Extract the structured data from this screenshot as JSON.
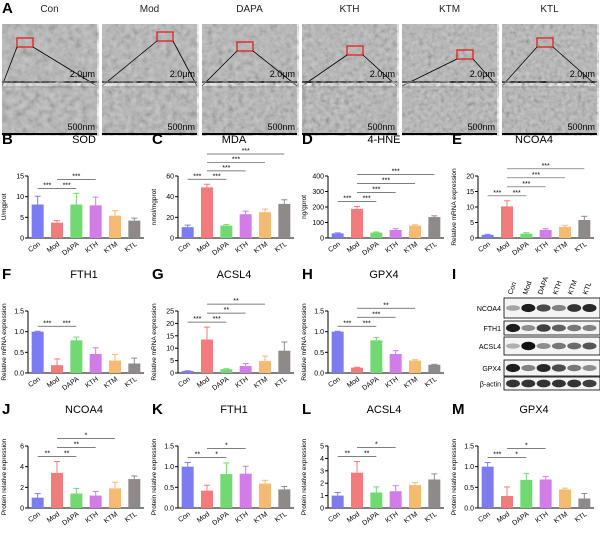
{
  "panel_a": {
    "letter": "A",
    "groups": [
      "Con",
      "Mod",
      "DAPA",
      "KTH",
      "KTM",
      "KTL"
    ],
    "scale_top": "2.0μm",
    "scale_bottom": "500nm"
  },
  "colors": {
    "Con": "#7c7cf0",
    "Mod": "#f07c7c",
    "DAPA": "#72d872",
    "KTH": "#d27ce8",
    "KTM": "#f5bb72",
    "KTL": "#8e8a8a"
  },
  "chart_data": [
    {
      "letter": "B",
      "type": "bar",
      "title": "SOD",
      "ylabel": "U/mgprot",
      "ylim": [
        0,
        15
      ],
      "ticks": [
        "0",
        "5",
        "10",
        "15"
      ],
      "categories": [
        "Con",
        "Mod",
        "DAPA",
        "KTH",
        "KTM",
        "KTL"
      ],
      "values": [
        8.1,
        3.7,
        8.1,
        7.9,
        5.4,
        4.2
      ],
      "errors": [
        2.0,
        0.5,
        2.7,
        2.0,
        1.2,
        0.6
      ],
      "significance": [
        {
          "from": 0,
          "to": 1,
          "label": "***"
        },
        {
          "from": 1,
          "to": 2,
          "label": "***"
        },
        {
          "from": 1,
          "to": 3,
          "label": "***"
        }
      ]
    },
    {
      "letter": "C",
      "type": "bar",
      "title": "MDA",
      "ylabel": "nmol/mgprot",
      "ylim": [
        0,
        60
      ],
      "ticks": [
        "0",
        "20",
        "40",
        "60"
      ],
      "categories": [
        "Con",
        "Mod",
        "DAPA",
        "KTH",
        "KTM",
        "KTL"
      ],
      "values": [
        10.5,
        49,
        12,
        23,
        25,
        33
      ],
      "errors": [
        2,
        3,
        1,
        3,
        3,
        4
      ],
      "significance": [
        {
          "from": 0,
          "to": 1,
          "label": "***"
        },
        {
          "from": 1,
          "to": 2,
          "label": "***"
        },
        {
          "from": 1,
          "to": 3,
          "label": "***"
        },
        {
          "from": 1,
          "to": 4,
          "label": "***"
        },
        {
          "from": 1,
          "to": 5,
          "label": "***"
        }
      ]
    },
    {
      "letter": "D",
      "type": "bar",
      "title": "4-HNE",
      "ylabel": "ng/gprot",
      "ylim": [
        0,
        400
      ],
      "ticks": [
        "0",
        "100",
        "200",
        "300",
        "400"
      ],
      "categories": [
        "Con",
        "Mod",
        "DAPA",
        "KTH",
        "KTM",
        "KTL"
      ],
      "values": [
        30,
        188,
        35,
        52,
        80,
        135
      ],
      "errors": [
        3,
        15,
        4,
        8,
        5,
        8
      ],
      "significance": [
        {
          "from": 0,
          "to": 1,
          "label": "***"
        },
        {
          "from": 1,
          "to": 2,
          "label": "***"
        },
        {
          "from": 1,
          "to": 3,
          "label": "***"
        },
        {
          "from": 1,
          "to": 4,
          "label": "***"
        },
        {
          "from": 1,
          "to": 5,
          "label": "***"
        }
      ]
    },
    {
      "letter": "E",
      "type": "bar",
      "title": "NCOA4",
      "ylabel": "Relative mRNA expression",
      "ylim": [
        0,
        20
      ],
      "ticks": [
        "0",
        "5",
        "10",
        "15",
        "20"
      ],
      "categories": [
        "Con",
        "Mod",
        "DAPA",
        "KTH",
        "KTM",
        "KTL"
      ],
      "values": [
        1.0,
        10.2,
        1.4,
        2.6,
        3.6,
        5.8
      ],
      "errors": [
        0.2,
        1.8,
        0.3,
        0.4,
        0.5,
        1.2
      ],
      "significance": [
        {
          "from": 0,
          "to": 1,
          "label": "***"
        },
        {
          "from": 1,
          "to": 2,
          "label": "***"
        },
        {
          "from": 1,
          "to": 3,
          "label": "***"
        },
        {
          "from": 1,
          "to": 4,
          "label": "***"
        },
        {
          "from": 1,
          "to": 5,
          "label": "***"
        }
      ]
    },
    {
      "letter": "F",
      "type": "bar",
      "title": "FTH1",
      "ylabel": "Relative mRNA expression",
      "ylim": [
        0,
        1.5
      ],
      "ticks": [
        "0.0",
        "0.5",
        "1.0",
        "1.5"
      ],
      "categories": [
        "Con",
        "Mod",
        "DAPA",
        "KTH",
        "KTM",
        "KTL"
      ],
      "values": [
        1.0,
        0.19,
        0.79,
        0.46,
        0.3,
        0.23
      ],
      "errors": [
        0.01,
        0.15,
        0.08,
        0.15,
        0.15,
        0.13
      ],
      "significance": [
        {
          "from": 0,
          "to": 1,
          "label": "***"
        },
        {
          "from": 1,
          "to": 2,
          "label": "***"
        }
      ]
    },
    {
      "letter": "G",
      "type": "bar",
      "title": "ACSL4",
      "ylabel": "Relative mRNA expression",
      "ylim": [
        0,
        25
      ],
      "ticks": [
        "0",
        "5",
        "10",
        "15",
        "20",
        "25"
      ],
      "categories": [
        "Con",
        "Mod",
        "DAPA",
        "KTH",
        "KTM",
        "KTL"
      ],
      "values": [
        0.8,
        13.5,
        1.5,
        2.8,
        4.8,
        9.0
      ],
      "errors": [
        0.1,
        5,
        0.2,
        1,
        2,
        3.5
      ],
      "significance": [
        {
          "from": 0,
          "to": 1,
          "label": "***"
        },
        {
          "from": 1,
          "to": 2,
          "label": "***"
        },
        {
          "from": 1,
          "to": 3,
          "label": "**"
        },
        {
          "from": 1,
          "to": 4,
          "label": "**"
        }
      ]
    },
    {
      "letter": "H",
      "type": "bar",
      "title": "GPX4",
      "ylabel": "Relative mRNA expression",
      "ylim": [
        0,
        1.5
      ],
      "ticks": [
        "0.0",
        "0.5",
        "1.0",
        "1.5"
      ],
      "categories": [
        "Con",
        "Mod",
        "DAPA",
        "KTH",
        "KTM",
        "KTL"
      ],
      "values": [
        1.0,
        0.13,
        0.79,
        0.46,
        0.3,
        0.2
      ],
      "errors": [
        0.01,
        0.01,
        0.07,
        0.08,
        0.02,
        0.01
      ],
      "significance": [
        {
          "from": 0,
          "to": 1,
          "label": "***"
        },
        {
          "from": 1,
          "to": 2,
          "label": "***"
        },
        {
          "from": 1,
          "to": 3,
          "label": "***"
        },
        {
          "from": 1,
          "to": 4,
          "label": "**"
        }
      ]
    },
    {
      "letter": "J",
      "type": "bar",
      "title": "NCOA4",
      "ylabel": "Protein relative expression",
      "ylim": [
        0,
        6
      ],
      "ticks": [
        "0",
        "2",
        "4",
        "6"
      ],
      "categories": [
        "Con",
        "Mod",
        "DAPA",
        "KTH",
        "KTM",
        "KTL"
      ],
      "values": [
        1.0,
        3.4,
        1.4,
        1.2,
        1.9,
        2.8
      ],
      "errors": [
        0.4,
        1.1,
        0.5,
        0.4,
        0.6,
        0.3
      ],
      "significance": [
        {
          "from": 0,
          "to": 1,
          "label": "**"
        },
        {
          "from": 1,
          "to": 2,
          "label": "**"
        },
        {
          "from": 1,
          "to": 3,
          "label": "**"
        },
        {
          "from": 1,
          "to": 4,
          "label": "*"
        }
      ]
    },
    {
      "letter": "K",
      "type": "bar",
      "title": "FTH1",
      "ylabel": "Protein relative expression",
      "ylim": [
        0,
        1.5
      ],
      "ticks": [
        "0.0",
        "0.5",
        "1.0",
        "1.5"
      ],
      "categories": [
        "Con",
        "Mod",
        "DAPA",
        "KTH",
        "KTM",
        "KTL"
      ],
      "values": [
        1.0,
        0.42,
        0.82,
        0.83,
        0.59,
        0.45
      ],
      "errors": [
        0.1,
        0.13,
        0.27,
        0.18,
        0.08,
        0.07
      ],
      "significance": [
        {
          "from": 0,
          "to": 1,
          "label": "**"
        },
        {
          "from": 1,
          "to": 2,
          "label": "*"
        },
        {
          "from": 1,
          "to": 3,
          "label": "*"
        }
      ]
    },
    {
      "letter": "L",
      "type": "bar",
      "title": "ACSL4",
      "ylabel": "Protein relative expression",
      "ylim": [
        0,
        5
      ],
      "ticks": [
        "0",
        "1",
        "2",
        "3",
        "4",
        "5"
      ],
      "categories": [
        "Con",
        "Mod",
        "DAPA",
        "KTH",
        "KTM",
        "KTL"
      ],
      "values": [
        1.0,
        2.85,
        1.25,
        1.35,
        1.85,
        2.3
      ],
      "errors": [
        0.25,
        0.9,
        0.45,
        0.45,
        0.2,
        0.45
      ],
      "significance": [
        {
          "from": 0,
          "to": 1,
          "label": "**"
        },
        {
          "from": 1,
          "to": 2,
          "label": "**"
        },
        {
          "from": 1,
          "to": 3,
          "label": "*"
        }
      ]
    },
    {
      "letter": "M",
      "type": "bar",
      "title": "GPX4",
      "ylabel": "Protein relative expression",
      "ylim": [
        0,
        1.5
      ],
      "ticks": [
        "0.0",
        "0.5",
        "1.0",
        "1.5"
      ],
      "categories": [
        "Con",
        "Mod",
        "DAPA",
        "KTH",
        "KTM",
        "KTL"
      ],
      "values": [
        1.0,
        0.29,
        0.68,
        0.69,
        0.45,
        0.23
      ],
      "errors": [
        0.1,
        0.22,
        0.15,
        0.07,
        0.03,
        0.12
      ],
      "significance": [
        {
          "from": 0,
          "to": 1,
          "label": "***"
        },
        {
          "from": 1,
          "to": 2,
          "label": "*"
        },
        {
          "from": 1,
          "to": 3,
          "label": "*"
        }
      ]
    }
  ],
  "western_blot": {
    "letter": "I",
    "lanes": [
      "Con",
      "Mod",
      "DAPA",
      "KTH",
      "KTM",
      "KTL"
    ],
    "rows": [
      {
        "label": "NCOA4",
        "intensity": [
          0.35,
          0.95,
          0.75,
          0.5,
          0.85,
          0.9
        ]
      },
      {
        "label": "FTH1",
        "intensity": [
          0.95,
          0.45,
          0.8,
          0.65,
          0.55,
          0.5
        ]
      },
      {
        "label": "ACSL4",
        "intensity": [
          0.3,
          1.0,
          0.45,
          0.55,
          0.6,
          0.7
        ]
      },
      {
        "label": "GPX4",
        "intensity": [
          0.95,
          0.5,
          0.9,
          0.75,
          0.55,
          0.45
        ]
      },
      {
        "label": "β-actin",
        "intensity": [
          0.85,
          0.85,
          0.85,
          0.85,
          0.85,
          0.8
        ]
      }
    ]
  }
}
